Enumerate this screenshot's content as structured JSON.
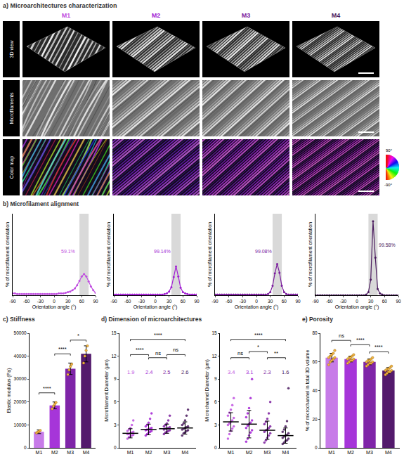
{
  "panel_a": {
    "title": "a) Microarchitectures characterization",
    "columns": [
      {
        "label": "M1",
        "color": "#c04fe0"
      },
      {
        "label": "M2",
        "color": "#a21fd4"
      },
      {
        "label": "M3",
        "color": "#7b1d9e"
      },
      {
        "label": "M4",
        "color": "#4a1a5e"
      }
    ],
    "rows": [
      "3D view",
      "Microfilaments",
      "Color map"
    ],
    "color_wheel": [
      "90°",
      "-90°"
    ]
  },
  "chart_data": [
    {
      "type": "line",
      "title": "b) Microfilament alignment",
      "color": "#c04fe0",
      "marker": "circle",
      "x": [
        -90,
        -85,
        -80,
        -75,
        -70,
        -65,
        -60,
        -55,
        -50,
        -45,
        -40,
        -35,
        -30,
        -25,
        -20,
        -15,
        -10,
        -5,
        0,
        5,
        10,
        15,
        20,
        25,
        30,
        35,
        40,
        45,
        50,
        55,
        60,
        65,
        70,
        75,
        80,
        85,
        90
      ],
      "values": [
        0.3,
        0.3,
        0.2,
        0.2,
        0.2,
        0.2,
        0.2,
        0.2,
        0.2,
        0.2,
        0.2,
        0.2,
        0.2,
        0.2,
        0.2,
        0.2,
        0.2,
        0.2,
        0.2,
        0.2,
        0.3,
        0.3,
        0.3,
        0.4,
        0.5,
        0.6,
        0.8,
        1.1,
        1.6,
        2.3,
        3.0,
        3.4,
        3.0,
        2.2,
        1.4,
        0.8,
        0.4
      ],
      "xlim": [
        -90,
        90
      ],
      "xticks": [
        -90,
        -60,
        -30,
        0,
        30,
        60,
        90
      ],
      "ylim": [
        0,
        13
      ],
      "tick_labels": "x",
      "xlabel": "Orientation angle (°)",
      "ylabel": "% of microfilament orientation",
      "band": [
        55,
        75
      ],
      "annotations": [
        {
          "text": "59.1%",
          "x": 30,
          "y": 7
        }
      ]
    },
    {
      "type": "line",
      "color": "#a21fd4",
      "marker": "circle",
      "x": [
        -90,
        -85,
        -80,
        -75,
        -70,
        -65,
        -60,
        -55,
        -50,
        -45,
        -40,
        -35,
        -30,
        -25,
        -20,
        -15,
        -10,
        -5,
        0,
        5,
        10,
        15,
        20,
        25,
        30,
        35,
        40,
        45,
        50,
        55,
        60,
        65,
        70,
        75,
        80,
        85,
        90
      ],
      "values": [
        0.1,
        0.1,
        0.1,
        0.1,
        0.1,
        0.1,
        0.1,
        0.1,
        0.1,
        0.1,
        0.1,
        0.1,
        0.1,
        0.1,
        0.1,
        0.1,
        0.1,
        0.1,
        0.1,
        0.1,
        0.1,
        0.1,
        0.2,
        0.3,
        0.6,
        1.3,
        2.9,
        4.6,
        3.0,
        1.2,
        0.5,
        0.3,
        0.2,
        0.1,
        0.1,
        0.1,
        0.1
      ],
      "xlim": [
        -90,
        90
      ],
      "xticks": [
        -90,
        -60,
        -30,
        0,
        30,
        60,
        90
      ],
      "ylim": [
        0,
        13
      ],
      "tick_labels": "x",
      "xlabel": "Orientation angle (°)",
      "ylabel": "% of microfilament orientation",
      "band": [
        35,
        55
      ],
      "annotations": [
        {
          "text": "99.14%",
          "x": 15,
          "y": 7
        }
      ]
    },
    {
      "type": "line",
      "color": "#7b1d9e",
      "marker": "circle",
      "x": [
        -90,
        -85,
        -80,
        -75,
        -70,
        -65,
        -60,
        -55,
        -50,
        -45,
        -40,
        -35,
        -30,
        -25,
        -20,
        -15,
        -10,
        -5,
        0,
        5,
        10,
        15,
        20,
        25,
        30,
        35,
        40,
        45,
        50,
        55,
        60,
        65,
        70,
        75,
        80,
        85,
        90
      ],
      "values": [
        0.1,
        0.1,
        0.1,
        0.1,
        0.1,
        0.1,
        0.1,
        0.1,
        0.1,
        0.1,
        0.1,
        0.1,
        0.1,
        0.1,
        0.1,
        0.1,
        0.1,
        0.1,
        0.1,
        0.1,
        0.1,
        0.1,
        0.1,
        0.2,
        0.5,
        1.5,
        3.5,
        5.0,
        3.6,
        1.5,
        0.5,
        0.2,
        0.1,
        0.1,
        0.1,
        0.1,
        0.1
      ],
      "xlim": [
        -90,
        90
      ],
      "xticks": [
        -90,
        -60,
        -30,
        0,
        30,
        60,
        90
      ],
      "ylim": [
        0,
        13
      ],
      "tick_labels": "x",
      "xlabel": "Orientation angle (°)",
      "ylabel": "% of microfilament orientation",
      "band": [
        35,
        55
      ],
      "annotations": [
        {
          "text": "99.08%",
          "x": 15,
          "y": 7
        }
      ]
    },
    {
      "type": "line",
      "color": "#4a1a5e",
      "marker": "circle",
      "x": [
        -90,
        -85,
        -80,
        -75,
        -70,
        -65,
        -60,
        -55,
        -50,
        -45,
        -40,
        -35,
        -30,
        -25,
        -20,
        -15,
        -10,
        -5,
        0,
        5,
        10,
        15,
        20,
        25,
        30,
        35,
        40,
        45,
        50,
        55,
        60,
        65,
        70,
        75,
        80,
        85,
        90
      ],
      "values": [
        0,
        0,
        0,
        0,
        0,
        0,
        0,
        0,
        0,
        0,
        0,
        0,
        0,
        0,
        0,
        0,
        0,
        0,
        0,
        0,
        0,
        0,
        0.1,
        0.5,
        2.5,
        11.8,
        6.0,
        1.0,
        0.3,
        0.1,
        0,
        0,
        0,
        0,
        0,
        0,
        0
      ],
      "xlim": [
        -90,
        90
      ],
      "xticks": [
        -90,
        -60,
        -30,
        0,
        30,
        60,
        90
      ],
      "ylim": [
        0,
        13
      ],
      "tick_labels": "x",
      "xlabel": "Orientation angle (°)",
      "ylabel": "% of microfilament orientation",
      "band": [
        25,
        45
      ],
      "annotations": [
        {
          "text": "99.58%",
          "x": 65,
          "y": 8
        }
      ]
    },
    {
      "type": "bar",
      "title": "c) Stiffness",
      "categories": [
        "M1",
        "M2",
        "M3",
        "M4"
      ],
      "values": [
        7000,
        18500,
        34500,
        41000
      ],
      "sd": [
        800,
        1500,
        2500,
        3500
      ],
      "colors": [
        "#c77be8",
        "#a635d9",
        "#7f25a8",
        "#531a6c"
      ],
      "points": [
        [
          6500,
          6900,
          7100,
          7600
        ],
        [
          17000,
          18200,
          19000,
          19800
        ],
        [
          32000,
          34000,
          35500,
          36500
        ],
        [
          37000,
          40000,
          42500,
          44500
        ]
      ],
      "ylim": [
        0,
        50000
      ],
      "yticks": [
        0,
        10000,
        20000,
        30000,
        40000,
        50000
      ],
      "ylabel": "Elastic modulus (Pa)",
      "comparisons": [
        {
          "from": "M1",
          "to": "M2",
          "label": "****",
          "y": 24000
        },
        {
          "from": "M2",
          "to": "M3",
          "label": "****",
          "y": 41000
        },
        {
          "from": "M3",
          "to": "M4",
          "label": "*",
          "y": 47000
        }
      ]
    },
    {
      "type": "scatter",
      "title": "d) Dimension of microarchitectures",
      "categories": [
        "M1",
        "M2",
        "M3",
        "M4"
      ],
      "values": [
        1.9,
        2.4,
        2.5,
        2.6
      ],
      "value_labels": [
        "1.9",
        "2.4",
        "2.5",
        "2.6"
      ],
      "data_labels": true,
      "sd": [
        0.6,
        0.7,
        0.6,
        0.8
      ],
      "colors": [
        "#c04fe0",
        "#a21fd4",
        "#7b1d9e",
        "#4a1a5e"
      ],
      "points": [
        [
          1.2,
          1.4,
          1.5,
          1.6,
          1.7,
          1.8,
          1.8,
          1.9,
          2.0,
          2.1,
          2.2,
          2.4,
          2.6,
          3.0,
          3.6
        ],
        [
          1.6,
          1.8,
          2.0,
          2.1,
          2.2,
          2.3,
          2.4,
          2.4,
          2.5,
          2.6,
          2.8,
          3.0,
          3.3,
          3.8,
          4.5
        ],
        [
          1.8,
          2.0,
          2.1,
          2.2,
          2.3,
          2.4,
          2.5,
          2.5,
          2.6,
          2.7,
          2.8,
          3.0,
          3.2,
          3.6,
          4.2
        ],
        [
          1.6,
          1.9,
          2.0,
          2.2,
          2.3,
          2.4,
          2.5,
          2.6,
          2.7,
          2.8,
          3.0,
          3.2,
          3.6,
          4.2,
          5.0
        ]
      ],
      "ylim": [
        0,
        15
      ],
      "yticks": [
        0,
        3,
        6,
        9,
        12,
        15
      ],
      "ylabel": "Microfilament Diameter (µm)",
      "comparisons": [
        {
          "from": "M1",
          "to": "M2",
          "label": "****",
          "y": 12.2
        },
        {
          "from": "M2",
          "to": "M3",
          "label": "ns",
          "y": 11.8
        },
        {
          "from": "M3",
          "to": "M4",
          "label": "ns",
          "y": 12.2
        },
        {
          "from": "M1",
          "to": "M4",
          "label": "****",
          "y": 14.2
        }
      ]
    },
    {
      "type": "scatter",
      "categories": [
        "M1",
        "M2",
        "M3",
        "M4"
      ],
      "values": [
        3.4,
        3.1,
        2.3,
        1.6
      ],
      "value_labels": [
        "3.4",
        "3.1",
        "2.3",
        "1.6"
      ],
      "data_labels": true,
      "sd": [
        1.2,
        1.8,
        1.2,
        1.0
      ],
      "colors": [
        "#c04fe0",
        "#a21fd4",
        "#7b1d9e",
        "#4a1a5e"
      ],
      "points": [
        [
          1.2,
          1.8,
          2.2,
          2.5,
          2.8,
          3.0,
          3.2,
          3.4,
          3.6,
          3.9,
          4.2,
          4.6,
          5.0,
          5.6,
          6.5
        ],
        [
          0.8,
          1.2,
          1.6,
          2.0,
          2.3,
          2.6,
          2.9,
          3.1,
          3.3,
          3.6,
          4.0,
          4.5,
          5.2,
          6.5,
          9.0
        ],
        [
          0.7,
          1.0,
          1.3,
          1.6,
          1.9,
          2.1,
          2.3,
          2.4,
          2.6,
          2.8,
          3.1,
          3.4,
          3.8,
          4.5,
          6.0
        ],
        [
          0.5,
          0.7,
          0.9,
          1.0,
          1.2,
          1.3,
          1.5,
          1.6,
          1.7,
          1.9,
          2.1,
          2.4,
          2.8,
          3.5,
          7.8
        ]
      ],
      "ylim": [
        0,
        15
      ],
      "yticks": [
        0,
        3,
        6,
        9,
        12,
        15
      ],
      "ylabel": "Microchannel Diameter (µm)",
      "comparisons": [
        {
          "from": "M1",
          "to": "M2",
          "label": "ns",
          "y": 11.8
        },
        {
          "from": "M2",
          "to": "M3",
          "label": "*",
          "y": 12.6
        },
        {
          "from": "M3",
          "to": "M4",
          "label": "**",
          "y": 11.8
        },
        {
          "from": "M1",
          "to": "M4",
          "label": "****",
          "y": 14.2
        }
      ]
    },
    {
      "type": "bar",
      "title": "e) Porosity",
      "categories": [
        "M1",
        "M2",
        "M3",
        "M4"
      ],
      "values": [
        63,
        62,
        60,
        54
      ],
      "sd": [
        3,
        2,
        2,
        2
      ],
      "colors": [
        "#c77be8",
        "#a635d9",
        "#7f25a8",
        "#531a6c"
      ],
      "points": [
        [
          58,
          60,
          61,
          62,
          63,
          63,
          64,
          65,
          66,
          68
        ],
        [
          59,
          60,
          61,
          61,
          62,
          62,
          63,
          63,
          64,
          65
        ],
        [
          57,
          58,
          59,
          59,
          60,
          60,
          61,
          61,
          62,
          63
        ],
        [
          51,
          52,
          53,
          53,
          54,
          54,
          55,
          55,
          56,
          57
        ]
      ],
      "ylim": [
        0,
        80
      ],
      "yticks": [
        0,
        20,
        40,
        60,
        80
      ],
      "ylabel": "% of microchannel in total 3D volume",
      "comparisons": [
        {
          "from": "M1",
          "to": "M2",
          "label": "ns",
          "y": 75
        },
        {
          "from": "M2",
          "to": "M3",
          "label": "****",
          "y": 72
        },
        {
          "from": "M3",
          "to": "M4",
          "label": "****",
          "y": 67
        }
      ]
    }
  ]
}
